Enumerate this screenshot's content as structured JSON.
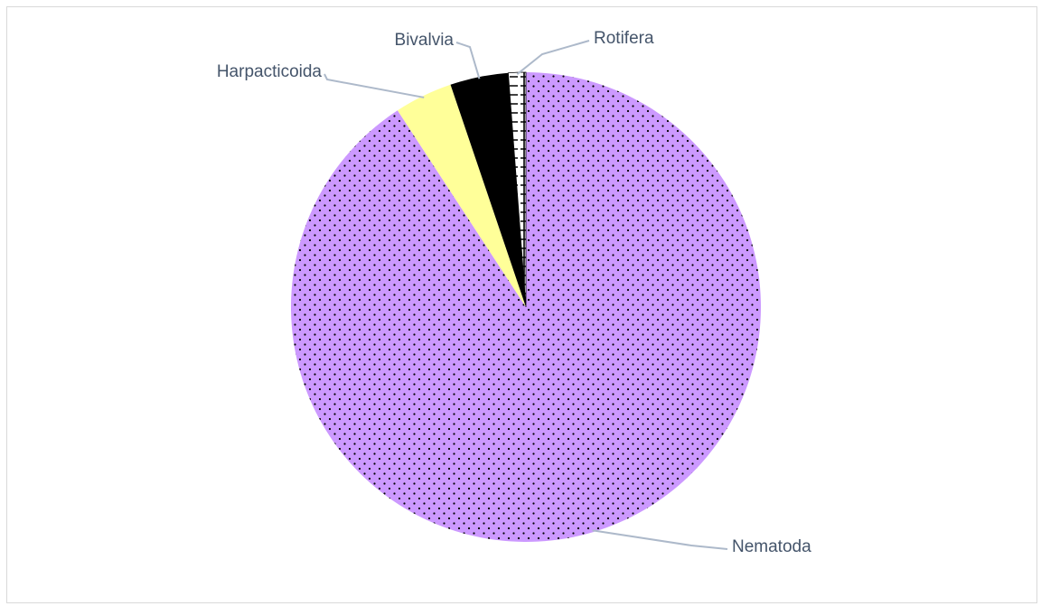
{
  "chart_data": {
    "type": "pie",
    "categories": [
      "Nematoda",
      "Harpacticoida",
      "Bivalvia",
      "Rotifera"
    ],
    "values": [
      90.8,
      4.0,
      4.0,
      1.2
    ],
    "colors": [
      "#cc99ff",
      "#ffff99",
      "#000000",
      "#ffffff"
    ],
    "patterns": [
      "dots",
      "none",
      "none",
      "ticks"
    ]
  }
}
